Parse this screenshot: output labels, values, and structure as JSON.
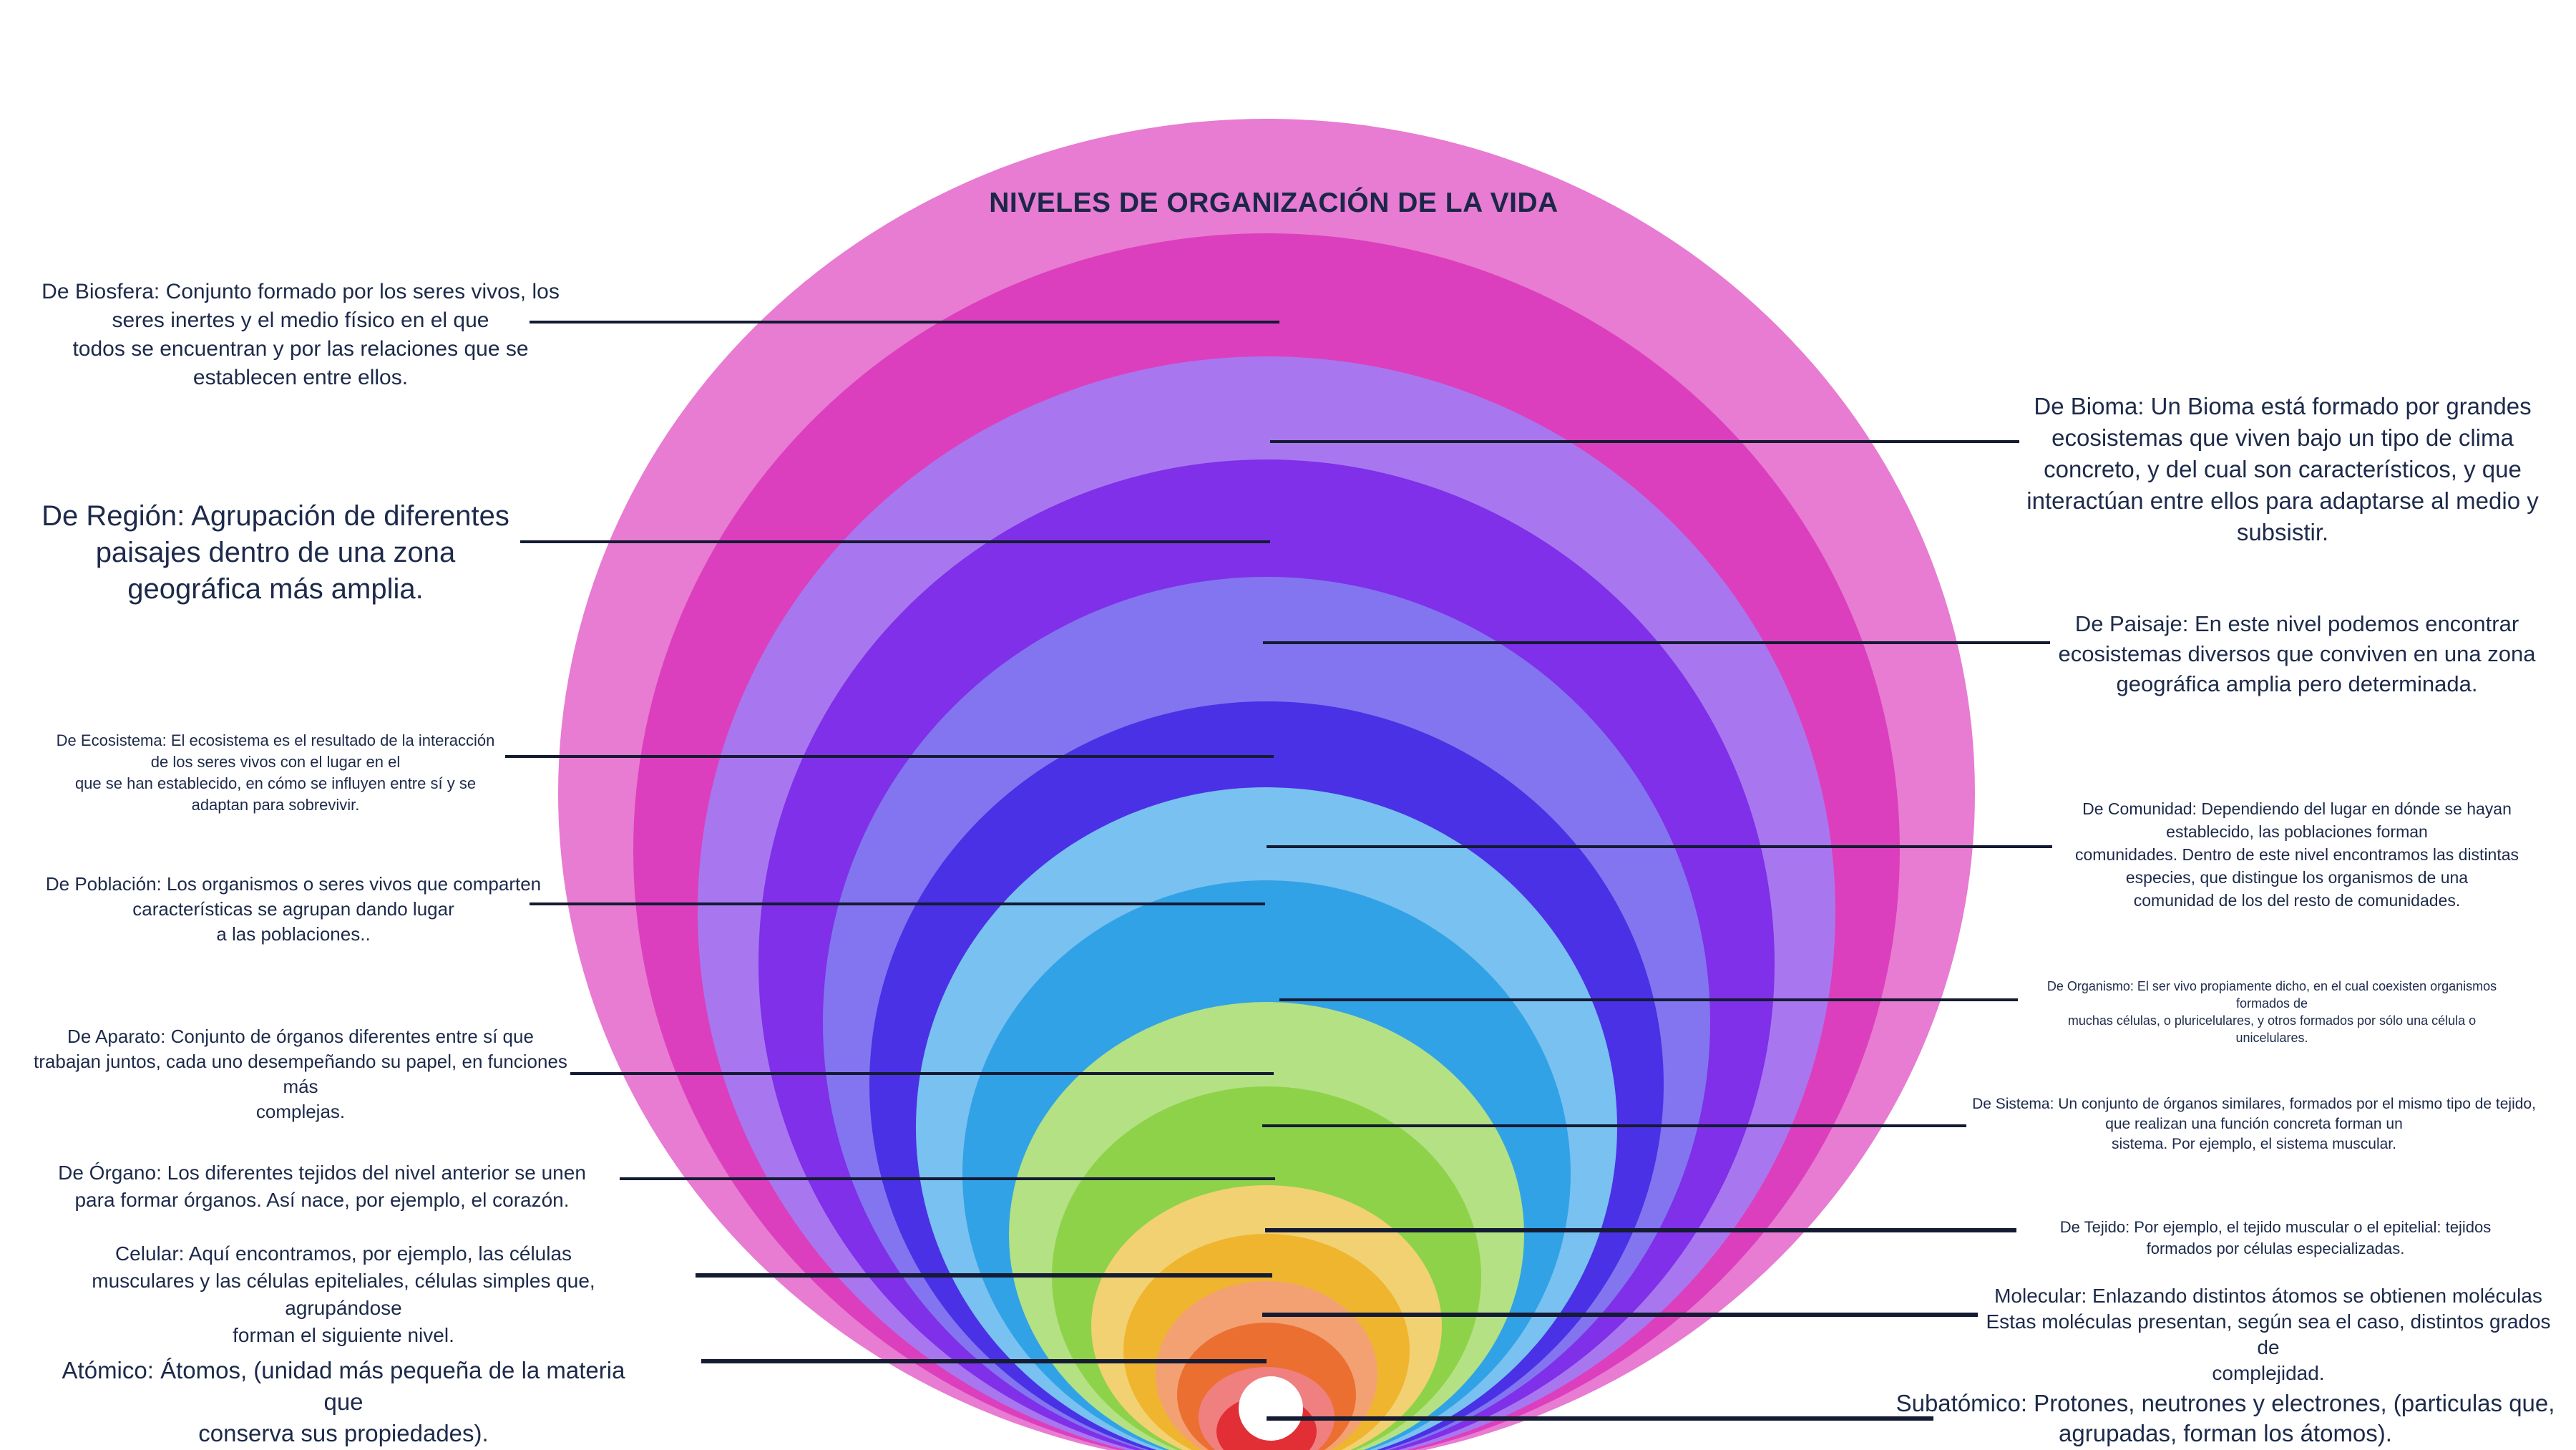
{
  "title": "NIVELES DE ORGANIZACIÓN DE LA VIDA",
  "levels": [
    {
      "id": "biosfera",
      "color": "#e87bd2",
      "text": "De Biosfera: Conjunto formado por los seres vivos, los\nseres inertes y el medio físico en el que\ntodos se encuentran y por las relaciones que se\nestablecen entre ellos."
    },
    {
      "id": "bioma",
      "color": "#dc3fbd",
      "text": "De Bioma: Un Bioma está formado por grandes\necosistemas que viven bajo un tipo de clima\nconcreto, y del cual son característicos, y que\ninteractúan entre ellos para adaptarse al medio y\nsubsistir."
    },
    {
      "id": "region",
      "color": "#a877f0",
      "text": "De Región: Agrupación de diferentes\npaisajes dentro de una zona\ngeográfica más amplia."
    },
    {
      "id": "paisaje",
      "color": "#7f30e8",
      "text": "De Paisaje: En este nivel podemos encontrar\necosistemas diversos que conviven en una zona\ngeográfica amplia pero determinada."
    },
    {
      "id": "ecosistema",
      "color": "#8275ef",
      "text": "De Ecosistema: El ecosistema es el resultado de la interacción\nde los seres vivos con el lugar en el\nque se han establecido, en cómo se influyen entre sí y se\nadaptan para sobrevivir."
    },
    {
      "id": "comunidad",
      "color": "#4a31e6",
      "text": "De Comunidad: Dependiendo del lugar en dónde se hayan\nestablecido, las poblaciones forman\ncomunidades. Dentro de este nivel encontramos las distintas\nespecies, que distingue los organismos de una\ncomunidad de los del resto de comunidades."
    },
    {
      "id": "poblacion",
      "color": "#79c1f0",
      "text": "De Población: Los organismos o seres vivos que comparten\ncaracterísticas se agrupan dando lugar\na las poblaciones.."
    },
    {
      "id": "organismo",
      "color": "#32a2e7",
      "text": "De Organismo: El ser vivo propiamente dicho, en el cual coexisten organismos\nformados de\nmuchas células, o pluricelulares, y otros formados por sólo una célula o\nunicelulares."
    },
    {
      "id": "aparato",
      "color": "#b3e184",
      "text": "De Aparato: Conjunto de órganos diferentes entre sí que\ntrabajan juntos, cada uno desempeñando su papel, en funciones más\ncomplejas."
    },
    {
      "id": "sistema",
      "color": "#8ed24a",
      "text": "De Sistema: Un conjunto de órganos similares, formados por el mismo tipo de tejido,\nque realizan una función concreta forman un\nsistema. Por ejemplo, el sistema muscular."
    },
    {
      "id": "organo",
      "color": "#f2d173",
      "text": "De Órgano: Los diferentes tejidos del nivel anterior se unen\npara formar órganos. Así nace, por ejemplo, el corazón."
    },
    {
      "id": "tejido",
      "color": "#efb52e",
      "text": "De Tejido: Por ejemplo, el tejido muscular o el epitelial: tejidos\nformados por células especializadas."
    },
    {
      "id": "celular",
      "color": "#f3a173",
      "text": "Celular: Aquí encontramos, por ejemplo, las células\nmusculares y las células epiteliales, células simples que, agrupándose\nforman el siguiente nivel."
    },
    {
      "id": "molecular",
      "color": "#ec6f32",
      "text": "Molecular: Enlazando distintos átomos se obtienen moléculas\nEstas moléculas presentan, según sea el caso, distintos grados de\ncomplejidad."
    },
    {
      "id": "atomico",
      "color": "#f08080",
      "text": "Atómico: Átomos, (unidad más pequeña de la materia que\nconserva sus propiedades)."
    },
    {
      "id": "subatomico",
      "color": "#e22f36",
      "text": "Subatómico: Protones, neutrones y electrones, (particulas que,\nagrupadas, forman los átomos)."
    }
  ]
}
